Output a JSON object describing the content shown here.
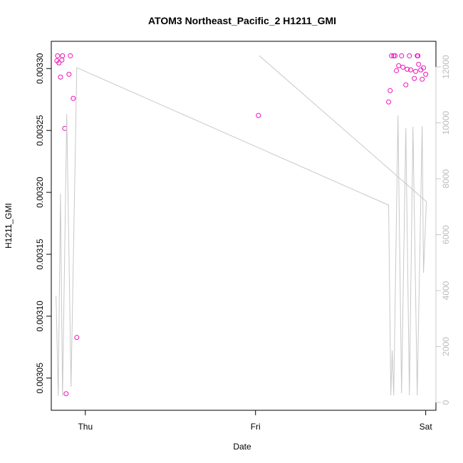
{
  "chart_data": {
    "type": "scatter",
    "title": "ATOM3 Northeast_Pacific_2 H1211_GMI",
    "x_label": "Date",
    "y_label": "H1211_GMI",
    "xlim": [
      -0.2,
      2.06
    ],
    "xticks": [
      {
        "value": 0,
        "label": "Thu"
      },
      {
        "value": 1,
        "label": "Fri"
      },
      {
        "value": 2,
        "label": "Sat"
      }
    ],
    "ylim": [
      0.003024,
      0.003322
    ],
    "yticks": [
      0.00305,
      {
        "value": 0.0031,
        "label": "0.00310"
      },
      0.00315,
      {
        "value": 0.0032,
        "label": "0.00320"
      },
      0.00325,
      {
        "value": 0.0033,
        "label": "0.00330"
      }
    ],
    "y2lim": [
      -280,
      12917
    ],
    "y2ticks": [
      0,
      2000,
      4000,
      6000,
      8000,
      10000,
      12000
    ],
    "series": [
      {
        "type": "scatter",
        "color": "#ee11bb",
        "x": [
          -0.163,
          -0.167,
          -0.155,
          -0.138,
          -0.134,
          -0.088,
          -0.146,
          -0.096,
          -0.071,
          -0.121,
          -0.113,
          -0.05,
          1.017,
          1.799,
          1.812,
          1.82,
          1.828,
          1.841,
          1.858,
          1.866,
          1.883,
          1.891,
          1.904,
          1.912,
          1.933,
          1.941,
          1.95,
          1.954,
          1.958,
          1.971,
          1.979,
          1.987,
          2.0,
          1.791,
          1.782
        ],
        "values": [
          0.0033103,
          0.0033063,
          0.0033046,
          0.0033069,
          0.0033103,
          0.0033103,
          0.0032931,
          0.0032954,
          0.0032759,
          0.0032517,
          0.0030374,
          0.0030828,
          0.0032621,
          0.0033103,
          0.0033103,
          0.0033103,
          0.0032983,
          0.0033023,
          0.0033103,
          0.0033011,
          0.0032868,
          0.0032994,
          0.0033103,
          0.0032989,
          0.003292,
          0.0032977,
          0.0033103,
          0.0033103,
          0.0033034,
          0.0032989,
          0.0032914,
          0.0033006,
          0.0032954,
          0.0032822,
          0.003273
        ]
      },
      {
        "type": "line",
        "color": "#c8c8c8",
        "axis": "y2",
        "x": [
          -0.172,
          -0.159,
          -0.146,
          -0.134,
          -0.109,
          -0.084,
          -0.05,
          1.782,
          1.795,
          1.803,
          1.812,
          1.837,
          1.858,
          1.883,
          1.904,
          1.925,
          1.95,
          1.979,
          1.987,
          2.004,
          1.021
        ],
        "values": [
          3822,
          229,
          7465,
          229,
          10318,
          561,
          11975,
          7057,
          255,
          1860,
          255,
          10268,
          331,
          9809,
          255,
          9860,
          255,
          9885,
          4637,
          7185,
          12408
        ]
      }
    ]
  }
}
